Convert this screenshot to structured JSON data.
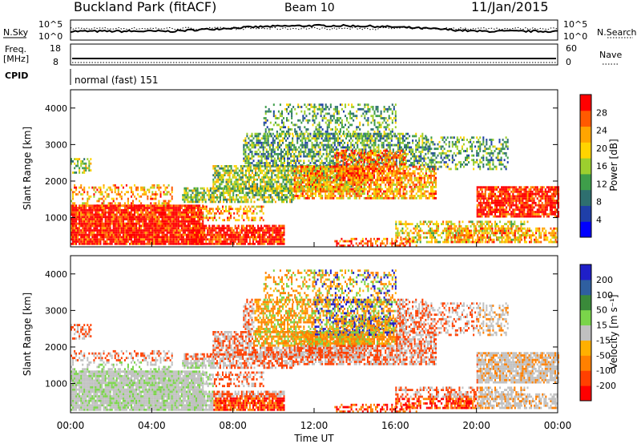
{
  "header": {
    "site": "Buckland Park (fitACF)",
    "beam": "Beam 10",
    "date": "11/Jan/2015"
  },
  "nsky_panel": {
    "left_label": "N.Sky",
    "right_label": "N.Search",
    "ytick_top": "10^5",
    "ytick_bottom": "10^0"
  },
  "freq_panel": {
    "left_label_1": "Freq.",
    "left_label_2": "[MHz]",
    "left_ticks": [
      "18",
      "8"
    ],
    "right_label": "Nave",
    "right_ticks": [
      "60",
      "0"
    ]
  },
  "cpid_panel": {
    "left_label": "CPID",
    "mode": "normal (fast) 151"
  },
  "colors": {
    "power_scale": [
      "#0000ff",
      "#1f3fa8",
      "#2e6f6f",
      "#3e9e4a",
      "#9ccf2e",
      "#ffd400",
      "#ffa500",
      "#ff5a00",
      "#ff0000"
    ],
    "velocity_scale": [
      "#1f1fc8",
      "#2f5fa0",
      "#3a8a3a",
      "#7ad44a",
      "#c0c0c0",
      "#ffb000",
      "#ff8000",
      "#ff4000",
      "#ff0000"
    ]
  },
  "chart_data": [
    {
      "type": "heatmap",
      "name": "power",
      "ylabel": "Slant Range [km]",
      "yticks": [
        1000,
        2000,
        3000,
        4000
      ],
      "ylim": [
        200,
        4500
      ],
      "xticks": [
        "00:00",
        "04:00",
        "08:00",
        "12:00",
        "16:00",
        "20:00",
        "00:00"
      ],
      "xlim_hours": [
        0,
        24
      ],
      "colorbar": {
        "label": "Power [dB]",
        "ticks": [
          "4",
          "8",
          "12",
          "16",
          "20",
          "24",
          "28"
        ],
        "range": [
          0,
          32
        ]
      }
    },
    {
      "type": "heatmap",
      "name": "velocity",
      "ylabel": "Slant Range [km]",
      "yticks": [
        1000,
        2000,
        3000,
        4000
      ],
      "ylim": [
        200,
        4500
      ],
      "xticks": [
        "00:00",
        "04:00",
        "08:00",
        "12:00",
        "16:00",
        "20:00",
        "00:00"
      ],
      "xlabel": "Time UT",
      "colorbar": {
        "label": "Velocity [m s⁻¹]",
        "ticks": [
          "200",
          "100",
          "50",
          "15",
          "-15",
          "-50",
          "-100",
          "-200"
        ]
      }
    }
  ]
}
